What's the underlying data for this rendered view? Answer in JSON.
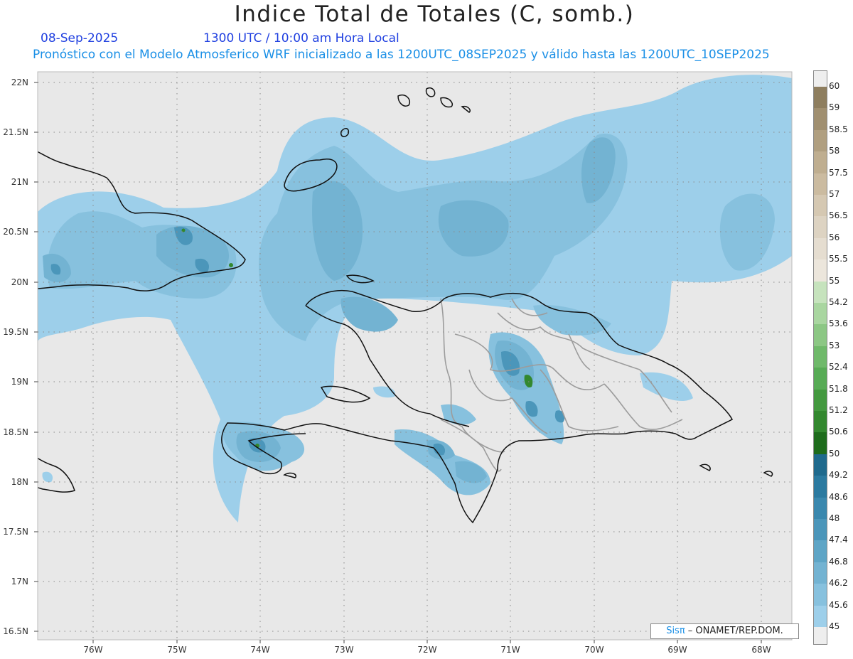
{
  "header": {
    "title": "Indice Total de Totales (C, somb.)",
    "date": "08-Sep-2025",
    "time": "1300 UTC / 10:00 am Hora Local",
    "subtitle": "Pronóstico con el Modelo Atmosferico WRF inicializado a las 1200UTC_08SEP2025 y válido hasta las  1200UTC_10SEP2025"
  },
  "axes": {
    "lat_labels": [
      "22N",
      "21.5N",
      "21N",
      "20.5N",
      "20N",
      "19.5N",
      "19N",
      "18.5N",
      "18N",
      "17.5N",
      "17N",
      "16.5N"
    ],
    "lon_labels": [
      "76W",
      "75W",
      "74W",
      "73W",
      "72W",
      "71W",
      "70W",
      "69W",
      "68W"
    ],
    "grid": true
  },
  "colorbar": {
    "labels": [
      "60",
      "59",
      "58.5",
      "58",
      "57.5",
      "57",
      "56.5",
      "56",
      "55.5",
      "55",
      "54.2",
      "53.6",
      "53",
      "52.4",
      "51.8",
      "51.2",
      "50.6",
      "50",
      "49.2",
      "48.6",
      "48",
      "47.4",
      "46.8",
      "46.2",
      "45.6",
      "45"
    ],
    "colors": [
      "#8e7e5f",
      "#a08f70",
      "#b09f80",
      "#bfae90",
      "#cbbba0",
      "#d5c8b2",
      "#ddd3c2",
      "#e5ddd0",
      "#ece6dc",
      "#c6e3bd",
      "#a9d6a0",
      "#8cc784",
      "#6fb96a",
      "#57ab55",
      "#43993f",
      "#33882f",
      "#1e6c1c",
      "#1f6a8d",
      "#2b7aa0",
      "#3a88ae",
      "#4b96ba",
      "#5ea5c6",
      "#73b3d2",
      "#87c1de",
      "#9dcfea"
    ]
  },
  "credit": {
    "brand": "Sisπ",
    "text": " – ONAMET/REP.DOM."
  }
}
